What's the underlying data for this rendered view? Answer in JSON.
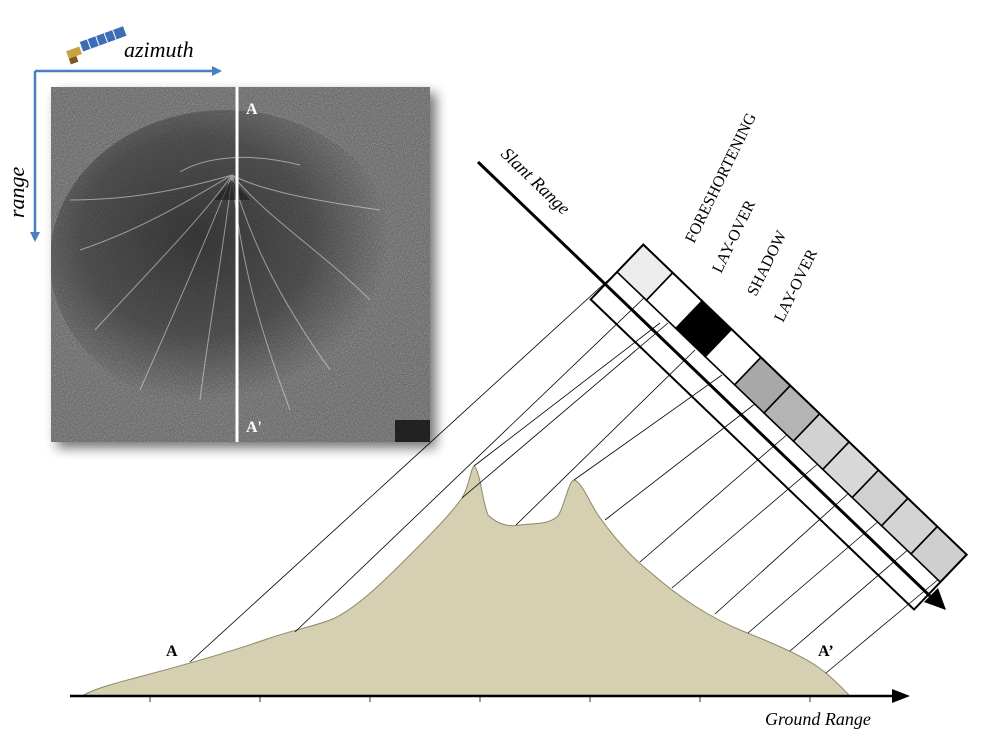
{
  "labels": {
    "azimuth": "azimuth",
    "range": "range",
    "slant_range": "Slant Range",
    "ground_range": "Ground Range",
    "point_a_image": "A",
    "point_a_prime_image": "A'",
    "point_a_profile": "A",
    "point_a_prime_profile": "A’"
  },
  "effects": {
    "foreshortening": "FORESHORTENING",
    "layover_1": "LAY-OVER",
    "shadow": "SHADOW",
    "layover_2": "LAY-OVER"
  },
  "cells": [
    {
      "effect": "foreshortening",
      "fill": "#ececec"
    },
    {
      "effect": "layover",
      "fill": "#ffffff"
    },
    {
      "effect": "shadow",
      "fill": "#000000"
    },
    {
      "effect": "layover",
      "fill": "#ffffff"
    },
    {
      "effect": "normal",
      "fill": "#a8a8a8"
    },
    {
      "effect": "normal",
      "fill": "#b4b4b4"
    },
    {
      "effect": "normal",
      "fill": "#d2d2d2"
    },
    {
      "effect": "normal",
      "fill": "#d8d8d8"
    },
    {
      "effect": "normal",
      "fill": "#d0d0d0"
    },
    {
      "effect": "normal",
      "fill": "#d4d4d4"
    },
    {
      "effect": "normal",
      "fill": "#cfcfcf"
    }
  ],
  "colors": {
    "axis_blue": "#4a7fc1",
    "terrain": "#d6d0b2",
    "terrain_stroke": "#8f8866",
    "sar_dark": "#3a3a3a"
  }
}
